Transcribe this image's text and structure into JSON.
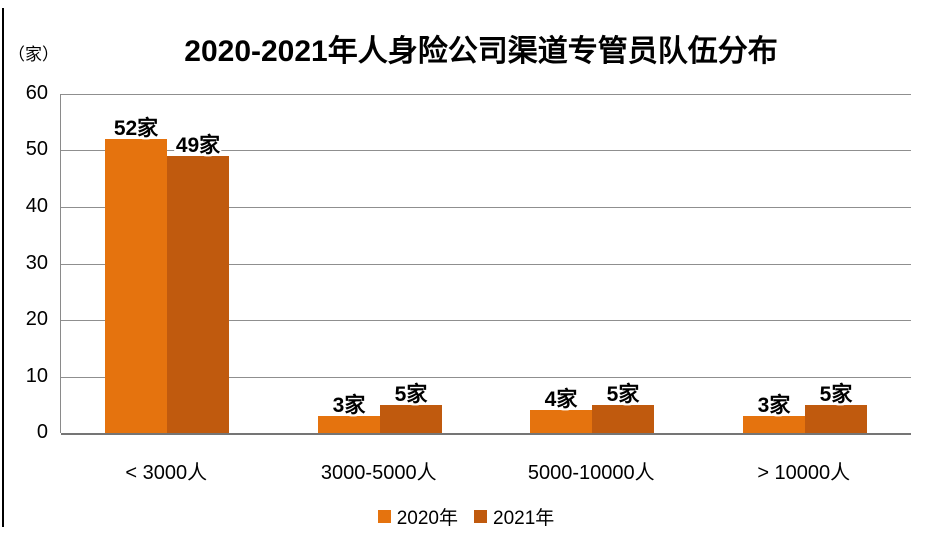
{
  "chart_data": {
    "type": "bar",
    "title": "2020-2021年人身险公司渠道专管员队伍分布",
    "unit_label": "（家）",
    "categories": [
      "< 3000人",
      "3000-5000人",
      "5000-10000人",
      "> 10000人"
    ],
    "series": [
      {
        "name": "2020年",
        "color": "#E5730E",
        "values": [
          52,
          3,
          4,
          3
        ],
        "data_labels": [
          "52家",
          "3家",
          "4家",
          "3家"
        ]
      },
      {
        "name": "2021年",
        "color": "#C05A0E",
        "values": [
          49,
          5,
          5,
          5
        ],
        "data_labels": [
          "49家",
          "5家",
          "5家",
          "5家"
        ]
      }
    ],
    "y_axis": {
      "min": 0,
      "max": 60,
      "tick_interval": 10,
      "ticks": [
        60,
        50,
        40,
        30,
        20,
        10,
        0
      ]
    },
    "grid": true,
    "legend_position": "bottom",
    "colors": {
      "gridline": "#8f8f8f",
      "axis_line": "#757575",
      "text": "#000000",
      "background": "#ffffff"
    }
  }
}
